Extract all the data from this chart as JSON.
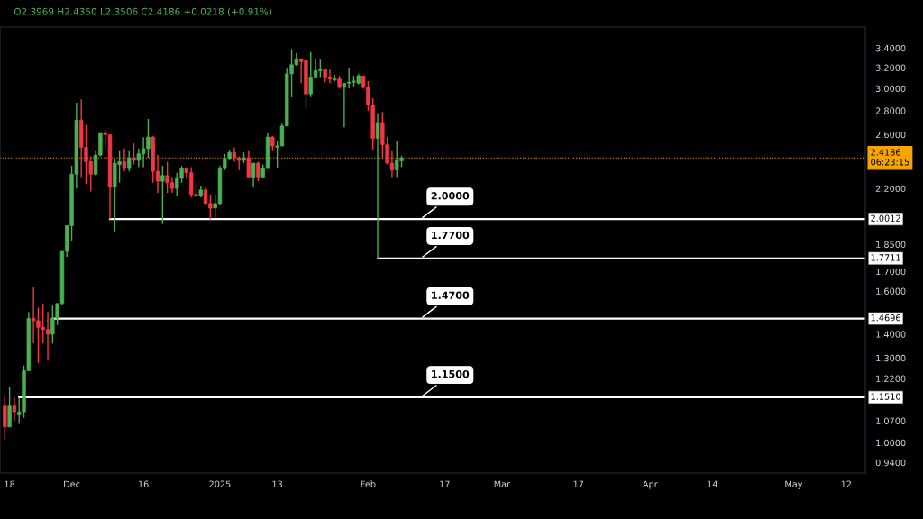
{
  "chart_data": {
    "type": "candlestick",
    "annotations": [
      "O2.3969 H2.4350 L2.3506 C2.4186 +0.0218 (+0.91%)",
      {
        "text": "2.0000",
        "x": "2025-02-12",
        "y": 2.0012
      },
      {
        "text": "1.7700",
        "x": "2025-02-12",
        "y": 1.7711
      },
      {
        "text": "1.4700",
        "x": "2025-02-12",
        "y": 1.4696
      },
      {
        "text": "1.1500",
        "x": "2025-02-12",
        "y": 1.151
      }
    ],
    "x": [
      "2024-11-17",
      "2024-11-18",
      "2024-11-19",
      "2024-11-20",
      "2024-11-21",
      "2024-11-22",
      "2024-11-23",
      "2024-11-24",
      "2024-11-25",
      "2024-11-26",
      "2024-11-27",
      "2024-11-28",
      "2024-11-29",
      "2024-11-30",
      "2024-12-01",
      "2024-12-02",
      "2024-12-03",
      "2024-12-04",
      "2024-12-05",
      "2024-12-06",
      "2024-12-07",
      "2024-12-08",
      "2024-12-09",
      "2024-12-10",
      "2024-12-11",
      "2024-12-12",
      "2024-12-13",
      "2024-12-14",
      "2024-12-15",
      "2024-12-16",
      "2024-12-17",
      "2024-12-18",
      "2024-12-19",
      "2024-12-20",
      "2024-12-21",
      "2024-12-22",
      "2024-12-23",
      "2024-12-24",
      "2024-12-25",
      "2024-12-26",
      "2024-12-27",
      "2024-12-28",
      "2024-12-29",
      "2024-12-30",
      "2024-12-31",
      "2025-01-01",
      "2025-01-02",
      "2025-01-03",
      "2025-01-04",
      "2025-01-05",
      "2025-01-06",
      "2025-01-07",
      "2025-01-08",
      "2025-01-09",
      "2025-01-10",
      "2025-01-11",
      "2025-01-12",
      "2025-01-13",
      "2025-01-14",
      "2025-01-15",
      "2025-01-16",
      "2025-01-17",
      "2025-01-18",
      "2025-01-19",
      "2025-01-20",
      "2025-01-21",
      "2025-01-22",
      "2025-01-23",
      "2025-01-24",
      "2025-01-25",
      "2025-01-26",
      "2025-01-27",
      "2025-01-28",
      "2025-01-29",
      "2025-01-30",
      "2025-01-31",
      "2025-02-01",
      "2025-02-02",
      "2025-02-03",
      "2025-02-04",
      "2025-02-05",
      "2025-02-06",
      "2025-02-07",
      "2025-02-08"
    ],
    "ohlc": [
      [
        1.12,
        1.16,
        1.01,
        1.05
      ],
      [
        1.05,
        1.19,
        1.05,
        1.12
      ],
      [
        1.12,
        1.15,
        1.07,
        1.1
      ],
      [
        1.09,
        1.15,
        1.06,
        1.1
      ],
      [
        1.1,
        1.27,
        1.08,
        1.25
      ],
      [
        1.25,
        1.5,
        1.25,
        1.47
      ],
      [
        1.47,
        1.62,
        1.36,
        1.46
      ],
      [
        1.46,
        1.52,
        1.28,
        1.43
      ],
      [
        1.43,
        1.54,
        1.36,
        1.42
      ],
      [
        1.42,
        1.5,
        1.29,
        1.4
      ],
      [
        1.4,
        1.53,
        1.36,
        1.47
      ],
      [
        1.47,
        1.54,
        1.44,
        1.54
      ],
      [
        1.54,
        1.81,
        1.53,
        1.81
      ],
      [
        1.81,
        1.96,
        1.78,
        1.96
      ],
      [
        1.96,
        2.36,
        1.87,
        2.3
      ],
      [
        2.3,
        2.87,
        2.2,
        2.72
      ],
      [
        2.72,
        2.9,
        2.28,
        2.5
      ],
      [
        2.5,
        2.68,
        2.23,
        2.39
      ],
      [
        2.39,
        2.43,
        2.18,
        2.3
      ],
      [
        2.3,
        2.47,
        2.29,
        2.44
      ],
      [
        2.44,
        2.61,
        2.43,
        2.61
      ],
      [
        2.61,
        2.64,
        2.5,
        2.6
      ],
      [
        2.6,
        2.6,
        2.0,
        2.21
      ],
      [
        2.21,
        2.41,
        1.92,
        2.38
      ],
      [
        2.37,
        2.47,
        2.24,
        2.39
      ],
      [
        2.39,
        2.49,
        2.32,
        2.34
      ],
      [
        2.34,
        2.47,
        2.32,
        2.42
      ],
      [
        2.42,
        2.53,
        2.37,
        2.4
      ],
      [
        2.4,
        2.49,
        2.35,
        2.45
      ],
      [
        2.45,
        2.58,
        2.35,
        2.49
      ],
      [
        2.49,
        2.73,
        2.42,
        2.58
      ],
      [
        2.58,
        2.59,
        2.24,
        2.32
      ],
      [
        2.32,
        2.44,
        2.17,
        2.25
      ],
      [
        2.25,
        2.36,
        1.97,
        2.29
      ],
      [
        2.29,
        2.39,
        2.17,
        2.24
      ],
      [
        2.24,
        2.28,
        2.17,
        2.2
      ],
      [
        2.2,
        2.31,
        2.15,
        2.27
      ],
      [
        2.27,
        2.36,
        2.24,
        2.34
      ],
      [
        2.34,
        2.35,
        2.27,
        2.31
      ],
      [
        2.31,
        2.35,
        2.14,
        2.16
      ],
      [
        2.16,
        2.24,
        2.14,
        2.15
      ],
      [
        2.15,
        2.22,
        2.14,
        2.19
      ],
      [
        2.19,
        2.21,
        2.09,
        2.1
      ],
      [
        2.1,
        2.16,
        2.0,
        2.07
      ],
      [
        2.07,
        2.16,
        2.01,
        2.1
      ],
      [
        2.1,
        2.36,
        2.09,
        2.34
      ],
      [
        2.34,
        2.45,
        2.33,
        2.41
      ],
      [
        2.41,
        2.48,
        2.4,
        2.46
      ],
      [
        2.46,
        2.5,
        2.39,
        2.42
      ],
      [
        2.42,
        2.43,
        2.33,
        2.4
      ],
      [
        2.4,
        2.46,
        2.38,
        2.42
      ],
      [
        2.42,
        2.47,
        2.28,
        2.28
      ],
      [
        2.28,
        2.38,
        2.21,
        2.38
      ],
      [
        2.38,
        2.39,
        2.25,
        2.28
      ],
      [
        2.28,
        2.37,
        2.27,
        2.34
      ],
      [
        2.34,
        2.61,
        2.34,
        2.58
      ],
      [
        2.58,
        2.59,
        2.47,
        2.51
      ],
      [
        2.5,
        2.55,
        2.34,
        2.51
      ],
      [
        2.51,
        2.69,
        2.51,
        2.67
      ],
      [
        2.67,
        3.19,
        2.67,
        3.14
      ],
      [
        3.14,
        3.39,
        2.92,
        3.23
      ],
      [
        3.23,
        3.35,
        3.22,
        3.29
      ],
      [
        3.29,
        3.29,
        3.05,
        3.26
      ],
      [
        3.27,
        3.27,
        2.83,
        2.95
      ],
      [
        2.95,
        3.36,
        2.92,
        3.1
      ],
      [
        3.1,
        3.29,
        3.1,
        3.17
      ],
      [
        3.17,
        3.28,
        3.1,
        3.18
      ],
      [
        3.18,
        3.18,
        3.06,
        3.1
      ],
      [
        3.11,
        3.18,
        3.05,
        3.09
      ],
      [
        3.08,
        3.13,
        3.07,
        3.09
      ],
      [
        3.09,
        3.12,
        3.0,
        3.01
      ],
      [
        3.01,
        3.05,
        2.66,
        3.05
      ],
      [
        3.05,
        3.2,
        3.0,
        3.06
      ],
      [
        3.06,
        3.12,
        3.02,
        3.07
      ],
      [
        3.05,
        3.14,
        3.04,
        3.12
      ],
      [
        3.12,
        3.12,
        3.0,
        3.01
      ],
      [
        3.01,
        3.07,
        2.8,
        2.85
      ],
      [
        2.85,
        2.91,
        2.48,
        2.57
      ],
      [
        2.57,
        2.78,
        1.77,
        2.7
      ],
      [
        2.7,
        2.79,
        2.42,
        2.52
      ],
      [
        2.52,
        2.58,
        2.37,
        2.38
      ],
      [
        2.38,
        2.47,
        2.28,
        2.33
      ],
      [
        2.33,
        2.55,
        2.28,
        2.4
      ],
      [
        2.3969,
        2.435,
        2.3506,
        2.4186
      ]
    ],
    "colors": [
      "#f23645",
      "#4caf50",
      "#f23645",
      "#4caf50",
      "#4caf50",
      "#4caf50",
      "#f23645",
      "#f23645",
      "#f23645",
      "#f23645",
      "#4caf50",
      "#4caf50",
      "#4caf50",
      "#4caf50",
      "#4caf50",
      "#4caf50",
      "#f23645",
      "#f23645",
      "#f23645",
      "#4caf50",
      "#4caf50",
      "#f23645",
      "#f23645",
      "#4caf50",
      "#4caf50",
      "#f23645",
      "#4caf50",
      "#f23645",
      "#4caf50",
      "#4caf50",
      "#4caf50",
      "#f23645",
      "#f23645",
      "#4caf50",
      "#f23645",
      "#f23645",
      "#4caf50",
      "#4caf50",
      "#f23645",
      "#f23645",
      "#f23645",
      "#4caf50",
      "#f23645",
      "#f23645",
      "#4caf50",
      "#4caf50",
      "#4caf50",
      "#4caf50",
      "#f23645",
      "#f23645",
      "#4caf50",
      "#f23645",
      "#4caf50",
      "#f23645",
      "#4caf50",
      "#4caf50",
      "#f23645",
      "#4caf50",
      "#4caf50",
      "#4caf50",
      "#4caf50",
      "#4caf50",
      "#f23645",
      "#f23645",
      "#4caf50",
      "#4caf50",
      "#4caf50",
      "#f23645",
      "#f23645",
      "#4caf50",
      "#f23645",
      "#4caf50",
      "#4caf50",
      "#4caf50",
      "#4caf50",
      "#f23645",
      "#f23645",
      "#f23645",
      "#4caf50",
      "#f23645",
      "#f23645",
      "#f23645",
      "#4caf50",
      "#4caf50"
    ],
    "series": [
      {
        "type": "line",
        "color": "#ffffff",
        "x": [
          "2024-12-09",
          "2025-05-16"
        ],
        "values": [
          2.0012,
          2.0012
        ],
        "value_labels": [
          null,
          "2.0012"
        ]
      },
      {
        "type": "line",
        "color": "#ffffff",
        "x": [
          "2025-02-03",
          "2025-05-16"
        ],
        "values": [
          1.7711,
          1.7711
        ],
        "value_labels": [
          null,
          "1.7711"
        ]
      },
      {
        "type": "line",
        "color": "#ffffff",
        "x": [
          "2024-11-27",
          "2025-05-16"
        ],
        "values": [
          1.4696,
          1.4696
        ],
        "value_labels": [
          null,
          "1.4696"
        ]
      },
      {
        "type": "line",
        "color": "#ffffff",
        "x": [
          "2024-11-20",
          "2025-05-16"
        ],
        "values": [
          1.151,
          1.151
        ],
        "value_labels": [
          null,
          "1.1510"
        ]
      }
    ],
    "ref_lines": [
      {
        "axis": "y",
        "value": 2.4186,
        "label": "2.4186\n06:23:15",
        "color": "#f7a600",
        "line_style": "dotted"
      }
    ],
    "log": true,
    "xlim": [
      "2024-11-16",
      "2025-05-16"
    ],
    "xticks": [
      {
        "value": "2024-11-18",
        "label": "18"
      },
      {
        "value": "2024-12-01",
        "label": "Dec"
      },
      {
        "value": "2024-12-16",
        "label": "16"
      },
      {
        "value": "2025-01-01",
        "label": "2025"
      },
      {
        "value": "2025-01-13",
        "label": "13"
      },
      {
        "value": "2025-02-01",
        "label": "Feb"
      },
      {
        "value": "2025-02-17",
        "label": "17"
      },
      {
        "value": "2025-03-01",
        "label": "Mar"
      },
      {
        "value": "2025-03-17",
        "label": "17"
      },
      {
        "value": "2025-04-01",
        "label": "Apr"
      },
      {
        "value": "2025-04-14",
        "label": "14"
      },
      {
        "value": "2025-05-01",
        "label": "May"
      },
      {
        "value": "2025-05-12",
        "label": "12"
      }
    ],
    "ylim": [
      0.91,
      3.63
    ],
    "yticks": [
      {
        "value": 0.94,
        "label": "0.9400"
      },
      {
        "value": 1.0,
        "label": "1.0000"
      },
      {
        "value": 1.07,
        "label": "1.0700"
      },
      {
        "value": 1.22,
        "label": "1.2200"
      },
      {
        "value": 1.3,
        "label": "1.3000"
      },
      {
        "value": 1.4,
        "label": "1.4000"
      },
      {
        "value": 1.6,
        "label": "1.6000"
      },
      {
        "value": 1.7,
        "label": "1.7000"
      },
      {
        "value": 1.85,
        "label": "1.8500"
      },
      {
        "value": 2.2,
        "label": "2.2000"
      },
      {
        "value": 2.6,
        "label": "2.6000"
      },
      {
        "value": 2.8,
        "label": "2.8000"
      },
      {
        "value": 3.0,
        "label": "3.0000"
      },
      {
        "value": 3.2,
        "label": "3.2000"
      },
      {
        "value": 3.4,
        "label": "3.4000"
      }
    ],
    "grid": false
  }
}
